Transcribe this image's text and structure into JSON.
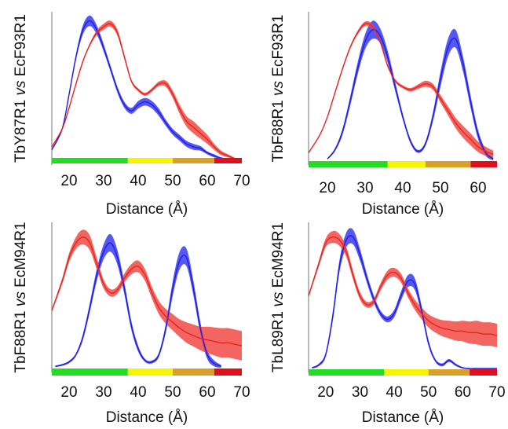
{
  "colors": {
    "blue": "#1f1fe8",
    "blue_band": "#3a3af0",
    "red": "#e8231f",
    "red_band": "#f04a44",
    "axis": "#8c8c8c",
    "bar_green": "#22dd22",
    "bar_yellow": "#f5f500",
    "bar_orange": "#dba02a",
    "bar_red": "#e0101a"
  },
  "chart_data": [
    {
      "type": "line",
      "ylabel_parts": [
        "TbY87R1 ",
        "vs",
        " EcF93R1"
      ],
      "xlabel": "Distance (Å)",
      "xlim": [
        15,
        70
      ],
      "xticks": [
        20,
        30,
        40,
        50,
        60,
        70
      ],
      "ylim": [
        0,
        1
      ],
      "grid": false,
      "legend": "none",
      "series": [
        {
          "color": "blue",
          "x": [
            15,
            18,
            20,
            22,
            24,
            26,
            28,
            30,
            32,
            34,
            36,
            38,
            40,
            42,
            44,
            46,
            48,
            50,
            52,
            54,
            56,
            58,
            60,
            62,
            64,
            66,
            68
          ],
          "y": [
            0.08,
            0.22,
            0.45,
            0.7,
            0.88,
            0.94,
            0.88,
            0.76,
            0.62,
            0.48,
            0.38,
            0.34,
            0.38,
            0.4,
            0.38,
            0.33,
            0.26,
            0.2,
            0.16,
            0.12,
            0.1,
            0.09,
            0.06,
            0.04,
            0.025,
            0.02,
            0.02
          ],
          "band": [
            0.005,
            0.01,
            0.015,
            0.02,
            0.03,
            0.035,
            0.03,
            0.025,
            0.02,
            0.02,
            0.02,
            0.02,
            0.025,
            0.025,
            0.025,
            0.025,
            0.02,
            0.02,
            0.02,
            0.02,
            0.02,
            0.015,
            0.01,
            0.01,
            0.005,
            0.005,
            0.005
          ]
        },
        {
          "color": "red",
          "x": [
            15,
            18,
            20,
            22,
            24,
            26,
            28,
            30,
            32,
            34,
            36,
            38,
            40,
            42,
            44,
            46,
            48,
            50,
            52,
            54,
            56,
            58,
            60,
            62,
            64,
            66,
            68,
            70
          ],
          "y": [
            0.1,
            0.22,
            0.36,
            0.52,
            0.67,
            0.78,
            0.86,
            0.9,
            0.92,
            0.86,
            0.7,
            0.54,
            0.48,
            0.45,
            0.48,
            0.52,
            0.52,
            0.45,
            0.35,
            0.27,
            0.23,
            0.19,
            0.15,
            0.1,
            0.06,
            0.04,
            0.02,
            0.01
          ],
          "band": [
            0.003,
            0.004,
            0.005,
            0.006,
            0.008,
            0.01,
            0.015,
            0.02,
            0.02,
            0.02,
            0.015,
            0.01,
            0.01,
            0.01,
            0.012,
            0.015,
            0.02,
            0.025,
            0.03,
            0.035,
            0.04,
            0.035,
            0.03,
            0.02,
            0.015,
            0.01,
            0.008,
            0.005
          ]
        }
      ],
      "color_bar": [
        {
          "from": 15,
          "to": 37,
          "color": "bar_green"
        },
        {
          "from": 37,
          "to": 50,
          "color": "bar_yellow"
        },
        {
          "from": 50,
          "to": 62,
          "color": "bar_orange"
        },
        {
          "from": 62,
          "to": 70,
          "color": "bar_red"
        }
      ]
    },
    {
      "type": "line",
      "ylabel_parts": [
        "TbF88R1 ",
        "vs",
        " EcF93R1"
      ],
      "xlabel": "Distance (Å)",
      "xlim": [
        15,
        65
      ],
      "xticks": [
        20,
        30,
        40,
        50,
        60
      ],
      "ylim": [
        0,
        1
      ],
      "grid": false,
      "legend": "none",
      "series": [
        {
          "color": "blue",
          "x": [
            20,
            22,
            24,
            26,
            28,
            30,
            32,
            34,
            36,
            38,
            40,
            42,
            44,
            46,
            48,
            50,
            52,
            54,
            56,
            58,
            60,
            62,
            64
          ],
          "y": [
            0.02,
            0.08,
            0.2,
            0.4,
            0.62,
            0.8,
            0.88,
            0.84,
            0.7,
            0.5,
            0.3,
            0.14,
            0.07,
            0.12,
            0.3,
            0.55,
            0.76,
            0.82,
            0.65,
            0.4,
            0.18,
            0.06,
            0.02
          ],
          "band": [
            0.005,
            0.01,
            0.02,
            0.03,
            0.04,
            0.05,
            0.06,
            0.05,
            0.04,
            0.03,
            0.02,
            0.015,
            0.01,
            0.015,
            0.03,
            0.05,
            0.06,
            0.06,
            0.05,
            0.04,
            0.03,
            0.02,
            0.01
          ]
        },
        {
          "color": "red",
          "x": [
            15,
            18,
            20,
            22,
            24,
            26,
            28,
            30,
            32,
            34,
            36,
            38,
            40,
            42,
            44,
            46,
            48,
            50,
            52,
            54,
            56,
            58,
            60,
            62,
            64
          ],
          "y": [
            0.06,
            0.18,
            0.3,
            0.46,
            0.62,
            0.76,
            0.86,
            0.92,
            0.9,
            0.8,
            0.64,
            0.54,
            0.5,
            0.48,
            0.5,
            0.52,
            0.5,
            0.42,
            0.34,
            0.26,
            0.2,
            0.15,
            0.1,
            0.07,
            0.05
          ],
          "band": [
            0.003,
            0.004,
            0.005,
            0.006,
            0.008,
            0.01,
            0.012,
            0.015,
            0.015,
            0.012,
            0.01,
            0.01,
            0.01,
            0.012,
            0.015,
            0.02,
            0.02,
            0.025,
            0.03,
            0.035,
            0.04,
            0.04,
            0.035,
            0.03,
            0.025
          ]
        }
      ],
      "color_bar": [
        {
          "from": 15,
          "to": 36,
          "color": "bar_green"
        },
        {
          "from": 36,
          "to": 46,
          "color": "bar_yellow"
        },
        {
          "from": 46,
          "to": 58,
          "color": "bar_orange"
        },
        {
          "from": 58,
          "to": 65,
          "color": "bar_red"
        }
      ]
    },
    {
      "type": "line",
      "ylabel_parts": [
        "TbF88R1 ",
        "vs",
        " EcM94R1"
      ],
      "xlabel": "Distance (Å)",
      "xlim": [
        15,
        70
      ],
      "xticks": [
        20,
        30,
        40,
        50,
        60,
        70
      ],
      "ylim": [
        0,
        1
      ],
      "grid": false,
      "legend": "none",
      "series": [
        {
          "color": "blue",
          "x": [
            16,
            18,
            20,
            22,
            24,
            26,
            28,
            30,
            32,
            34,
            36,
            38,
            40,
            42,
            44,
            46,
            48,
            50,
            52,
            54,
            56,
            58,
            60,
            62,
            64
          ],
          "y": [
            0.02,
            0.03,
            0.05,
            0.1,
            0.22,
            0.42,
            0.64,
            0.8,
            0.86,
            0.76,
            0.55,
            0.3,
            0.14,
            0.06,
            0.05,
            0.1,
            0.28,
            0.55,
            0.74,
            0.76,
            0.55,
            0.28,
            0.1,
            0.04,
            0.02
          ],
          "band": [
            0.005,
            0.006,
            0.008,
            0.01,
            0.02,
            0.03,
            0.04,
            0.05,
            0.06,
            0.05,
            0.04,
            0.03,
            0.02,
            0.01,
            0.01,
            0.015,
            0.03,
            0.05,
            0.06,
            0.06,
            0.05,
            0.04,
            0.03,
            0.02,
            0.01
          ]
        },
        {
          "color": "red",
          "x": [
            15,
            18,
            20,
            22,
            24,
            26,
            28,
            30,
            32,
            34,
            36,
            38,
            40,
            42,
            44,
            46,
            48,
            50,
            52,
            54,
            56,
            58,
            60,
            62,
            64,
            66,
            68,
            70
          ],
          "y": [
            0.4,
            0.6,
            0.76,
            0.86,
            0.9,
            0.86,
            0.72,
            0.58,
            0.52,
            0.54,
            0.62,
            0.68,
            0.7,
            0.64,
            0.52,
            0.42,
            0.36,
            0.32,
            0.28,
            0.25,
            0.23,
            0.21,
            0.2,
            0.19,
            0.18,
            0.18,
            0.17,
            0.16
          ],
          "band": [
            0.01,
            0.02,
            0.03,
            0.04,
            0.05,
            0.05,
            0.04,
            0.03,
            0.025,
            0.025,
            0.03,
            0.035,
            0.04,
            0.04,
            0.04,
            0.045,
            0.05,
            0.055,
            0.06,
            0.07,
            0.075,
            0.08,
            0.09,
            0.095,
            0.1,
            0.1,
            0.1,
            0.1
          ]
        }
      ],
      "color_bar": [
        {
          "from": 15,
          "to": 37,
          "color": "bar_green"
        },
        {
          "from": 37,
          "to": 50,
          "color": "bar_yellow"
        },
        {
          "from": 50,
          "to": 62,
          "color": "bar_orange"
        },
        {
          "from": 62,
          "to": 70,
          "color": "bar_red"
        }
      ]
    },
    {
      "type": "line",
      "ylabel_parts": [
        "TbL89R1 ",
        "vs",
        " EcM94R1"
      ],
      "xlabel": "Distance (Å)",
      "xlim": [
        15,
        70
      ],
      "xticks": [
        20,
        30,
        40,
        50,
        60,
        70
      ],
      "ylim": [
        0,
        1
      ],
      "grid": false,
      "legend": "none",
      "series": [
        {
          "color": "blue",
          "x": [
            16,
            18,
            20,
            22,
            24,
            26,
            28,
            30,
            32,
            34,
            36,
            38,
            40,
            42,
            44,
            46,
            48,
            50,
            52,
            54,
            56,
            58,
            60,
            62,
            64,
            66,
            68,
            70
          ],
          "y": [
            0.01,
            0.03,
            0.1,
            0.35,
            0.7,
            0.88,
            0.9,
            0.78,
            0.62,
            0.48,
            0.38,
            0.34,
            0.38,
            0.5,
            0.6,
            0.58,
            0.4,
            0.18,
            0.06,
            0.03,
            0.06,
            0.03,
            0.01,
            0.005,
            0.005,
            0.005,
            0.005,
            0.005
          ],
          "band": [
            0.005,
            0.008,
            0.015,
            0.03,
            0.04,
            0.05,
            0.05,
            0.04,
            0.03,
            0.025,
            0.02,
            0.02,
            0.025,
            0.03,
            0.04,
            0.04,
            0.03,
            0.02,
            0.01,
            0.01,
            0.01,
            0.008,
            0.005,
            0.004,
            0.004,
            0.004,
            0.004,
            0.004
          ]
        },
        {
          "color": "red",
          "x": [
            15,
            18,
            20,
            22,
            24,
            26,
            28,
            30,
            32,
            34,
            36,
            38,
            40,
            42,
            44,
            46,
            48,
            50,
            52,
            54,
            56,
            58,
            60,
            62,
            64,
            66,
            68,
            70
          ],
          "y": [
            0.5,
            0.72,
            0.86,
            0.9,
            0.88,
            0.8,
            0.64,
            0.5,
            0.44,
            0.46,
            0.56,
            0.64,
            0.66,
            0.62,
            0.52,
            0.44,
            0.38,
            0.33,
            0.3,
            0.28,
            0.27,
            0.26,
            0.26,
            0.25,
            0.25,
            0.24,
            0.24,
            0.23
          ],
          "band": [
            0.01,
            0.02,
            0.03,
            0.04,
            0.04,
            0.035,
            0.03,
            0.025,
            0.02,
            0.02,
            0.025,
            0.03,
            0.03,
            0.03,
            0.03,
            0.035,
            0.04,
            0.045,
            0.05,
            0.055,
            0.06,
            0.065,
            0.07,
            0.075,
            0.08,
            0.08,
            0.08,
            0.08
          ]
        }
      ],
      "color_bar": [
        {
          "from": 15,
          "to": 37,
          "color": "bar_green"
        },
        {
          "from": 37,
          "to": 50,
          "color": "bar_yellow"
        },
        {
          "from": 50,
          "to": 62,
          "color": "bar_orange"
        },
        {
          "from": 62,
          "to": 70,
          "color": "bar_red"
        }
      ]
    }
  ]
}
